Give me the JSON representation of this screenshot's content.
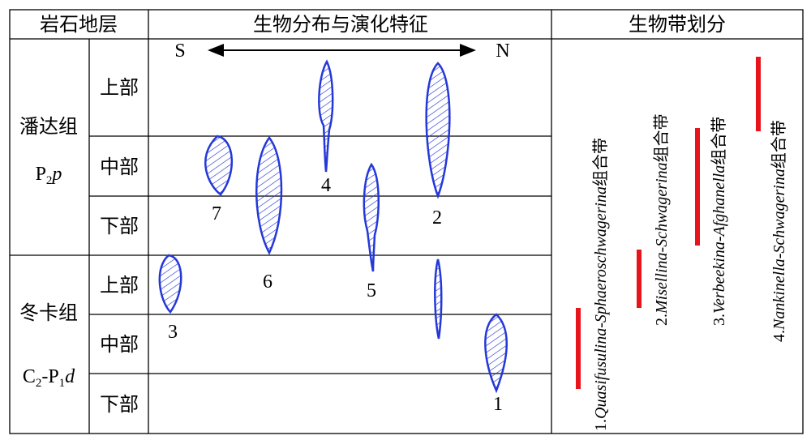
{
  "header": {
    "strata": "岩石地层",
    "distribution": "生物分布与演化特征",
    "zones": "生物带划分"
  },
  "formations": [
    {
      "name": "潘达组",
      "code": [
        "P",
        "2",
        "p"
      ],
      "parts": [
        "上部",
        "中部",
        "下部"
      ]
    },
    {
      "name": "冬卡组",
      "code": [
        "C",
        "2",
        "-P",
        "1",
        "d"
      ],
      "parts": [
        "上部",
        "中部",
        "下部"
      ]
    }
  ],
  "direction": {
    "south": "S",
    "north": "N"
  },
  "taxa_labels": [
    "1",
    "2",
    "3",
    "4",
    "5",
    "6",
    "7"
  ],
  "zones": [
    {
      "number": "1.",
      "genera": "Quasifusulina-Sphaeroschwagerina",
      "suffix": "组合带"
    },
    {
      "number": "2.",
      "genera": "Misellina-Schwagerina",
      "suffix": "组合带"
    },
    {
      "number": "3.",
      "genera": "Verbeekina-Afghanella",
      "suffix": "组合带"
    },
    {
      "number": "4.",
      "genera": "Nankinella-Schwagerina",
      "suffix": "组合带"
    }
  ]
}
